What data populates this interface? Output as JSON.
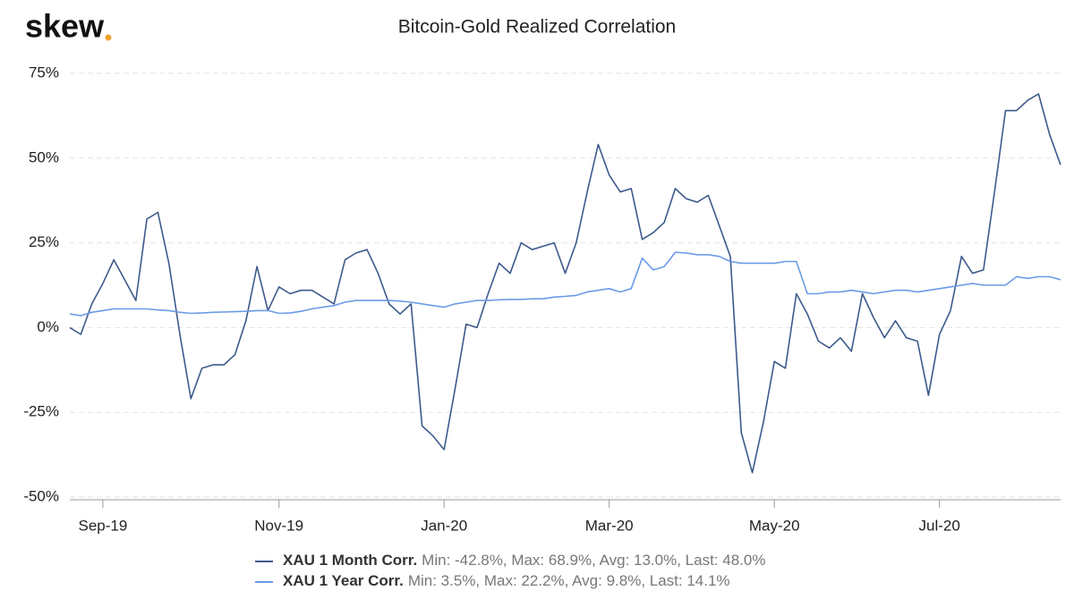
{
  "brand": "skew",
  "chart_data": {
    "type": "line",
    "title": "Bitcoin-Gold Realized Correlation",
    "categories": [
      null,
      null,
      null,
      "Sep-19",
      null,
      null,
      null,
      null,
      null,
      null,
      null,
      null,
      null,
      null,
      null,
      null,
      null,
      null,
      null,
      "Nov-19",
      null,
      null,
      null,
      null,
      null,
      null,
      null,
      null,
      null,
      null,
      null,
      null,
      null,
      null,
      "Jan-20",
      null,
      null,
      null,
      null,
      null,
      null,
      null,
      null,
      null,
      null,
      null,
      null,
      null,
      null,
      "Mar-20",
      null,
      null,
      null,
      null,
      null,
      null,
      null,
      null,
      null,
      null,
      null,
      null,
      null,
      null,
      "May-20",
      null,
      null,
      null,
      null,
      null,
      null,
      null,
      null,
      null,
      null,
      null,
      null,
      null,
      null,
      "Jul-20",
      null,
      null,
      null,
      null,
      null,
      null,
      null,
      null,
      null,
      null,
      null
    ],
    "series": [
      {
        "name": "XAU 1 Month Corr.",
        "stats": "Min: -42.8%, Max: 68.9%, Avg: 13.0%, Last: 48.0%",
        "color": "#3d5a8c",
        "values": [
          0,
          -2,
          7,
          13,
          20,
          14,
          8,
          32,
          34,
          19,
          -2,
          -21,
          -12,
          -11,
          -11,
          -8,
          2,
          18,
          5,
          12,
          10,
          11,
          11,
          9,
          7,
          20,
          22,
          23,
          16,
          7,
          4,
          7,
          -29,
          -32,
          -36,
          -18,
          1,
          0,
          10,
          19,
          16,
          25,
          23,
          24,
          25,
          16,
          25,
          40,
          54,
          45,
          40,
          41,
          26,
          28,
          31,
          41,
          38,
          37,
          39,
          30,
          21,
          -31,
          -42.8,
          -28,
          -10,
          -12,
          10,
          4,
          -4,
          -6,
          -3,
          -7,
          10,
          3,
          -3,
          2,
          -3,
          -4,
          -20,
          -2,
          5,
          21,
          16,
          17,
          40,
          64,
          64,
          67,
          68.9,
          57,
          48
        ]
      },
      {
        "name": "XAU 1 Year Corr.",
        "stats": "Min: 3.5%, Max: 22.2%, Avg: 9.8%, Last: 14.1%",
        "color": "#6c9be6",
        "values": [
          4,
          3.5,
          4.5,
          5,
          5.5,
          5.5,
          5.5,
          5.5,
          5.2,
          5,
          4.5,
          4.2,
          4.3,
          4.5,
          4.6,
          4.7,
          4.8,
          5,
          5,
          4.2,
          4.3,
          4.8,
          5.5,
          6,
          6.5,
          7.5,
          8,
          8,
          8,
          8,
          7.8,
          7.5,
          7,
          6.5,
          6,
          7,
          7.5,
          8,
          8,
          8.2,
          8.3,
          8.3,
          8.5,
          8.5,
          9,
          9.2,
          9.5,
          10.5,
          11,
          11.5,
          10.5,
          11.5,
          20.5,
          17,
          18,
          22.2,
          22,
          21.5,
          21.5,
          21,
          19.5,
          19,
          19,
          19,
          19,
          19.5,
          19.5,
          10,
          10,
          10.5,
          10.5,
          11,
          10.5,
          10,
          10.5,
          11,
          11,
          10.5,
          11,
          11.5,
          12,
          12.5,
          13,
          12.5,
          12.5,
          12.5,
          15,
          14.5,
          15,
          15,
          14.1
        ]
      }
    ],
    "ylim": [
      -50,
      75
    ],
    "yticks": [
      {
        "value": -50,
        "label": "-50%"
      },
      {
        "value": -25,
        "label": "-25%"
      },
      {
        "value": 0,
        "label": "0%"
      },
      {
        "value": 25,
        "label": "25%"
      },
      {
        "value": 50,
        "label": "50%"
      },
      {
        "value": 75,
        "label": "75%"
      }
    ],
    "grid": true
  }
}
